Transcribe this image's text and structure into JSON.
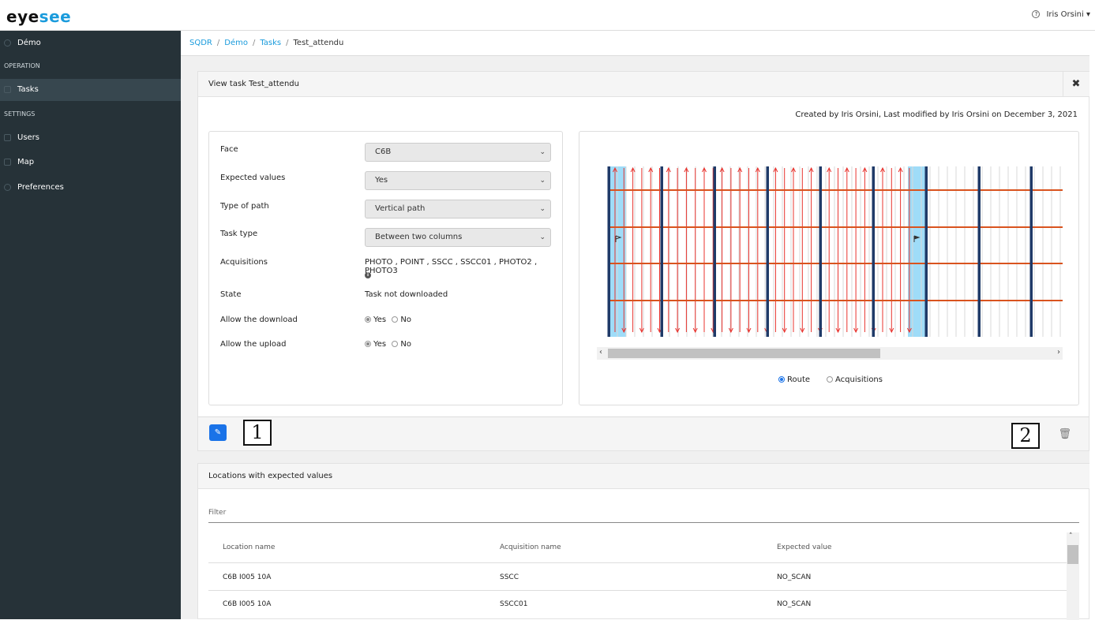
{
  "brand": {
    "logo_prefix": "eye",
    "logo_suffix": "see"
  },
  "topbar": {
    "help_icon": "?",
    "user_name": "Iris Orsini"
  },
  "sidebar": {
    "items": [
      {
        "label": "Démo",
        "icon": "circle-icon"
      },
      {
        "label": "Tasks",
        "icon": "tasks-icon"
      },
      {
        "label": "Users",
        "icon": "users-icon"
      },
      {
        "label": "Map",
        "icon": "map-icon"
      },
      {
        "label": "Preferences",
        "icon": "gear-icon"
      }
    ],
    "sections": [
      "OPERATION",
      "SETTINGS"
    ]
  },
  "breadcrumb": [
    "SQDR",
    "Démo",
    "Tasks",
    "Test_attendu"
  ],
  "view_panel": {
    "title": "View task Test_attendu",
    "close_icon": "✖",
    "meta": "Created by Iris Orsini, Last modified by Iris Orsini on December 3, 2021"
  },
  "form": {
    "face_label": "Face",
    "face_value": "C6B",
    "expected_label": "Expected values",
    "expected_value": "Yes",
    "path_label": "Type of path",
    "path_value": "Vertical path",
    "tasktype_label": "Task type",
    "tasktype_value": "Between two columns",
    "acq_label": "Acquisitions",
    "acq_value": "PHOTO , POINT , SSCC , SSCC01 , PHOTO2 , PHOTO3",
    "state_label": "State",
    "state_value": "Task not downloaded",
    "download_label": "Allow the download",
    "upload_label": "Allow the upload",
    "yes": "Yes",
    "no": "No",
    "download_selected": "Yes",
    "upload_selected": "Yes"
  },
  "map": {
    "route_label": "Route",
    "acq_label": "Acquisitions",
    "selected": "Route",
    "colors": {
      "column": "#1f3a68",
      "beam": "#d9531e",
      "path": "#e8332e",
      "highlight": "#7fd0f5"
    }
  },
  "actions": {
    "edit_icon": "✎",
    "callout_1": "1",
    "callout_2": "2",
    "trash_icon": "🗑"
  },
  "locations": {
    "title": "Locations with expected values",
    "filter_placeholder": "Filter",
    "columns": [
      "Location name",
      "Acquisition name",
      "Expected value"
    ],
    "rows": [
      [
        "C6B I005 10A",
        "SSCC",
        "NO_SCAN"
      ],
      [
        "C6B I005 10A",
        "SSCC01",
        "NO_SCAN"
      ]
    ]
  }
}
